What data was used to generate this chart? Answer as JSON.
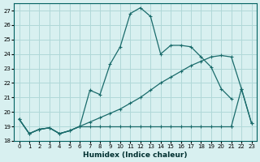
{
  "xlabel": "Humidex (Indice chaleur)",
  "bg_color": "#d8f0f0",
  "grid_color": "#b0d8d8",
  "line_color": "#1a6b6b",
  "xlim": [
    -0.5,
    23.5
  ],
  "ylim": [
    18,
    27.5
  ],
  "xticks": [
    0,
    1,
    2,
    3,
    4,
    5,
    6,
    7,
    8,
    9,
    10,
    11,
    12,
    13,
    14,
    15,
    16,
    17,
    18,
    19,
    20,
    21,
    22,
    23
  ],
  "yticks": [
    18,
    19,
    20,
    21,
    22,
    23,
    24,
    25,
    26,
    27
  ],
  "series": [
    {
      "x": [
        0,
        1,
        2,
        3,
        4,
        5,
        6,
        7,
        8,
        9,
        10,
        11,
        12,
        13,
        14,
        15,
        16,
        17,
        18,
        19,
        20,
        21
      ],
      "y": [
        19.5,
        18.5,
        18.8,
        18.9,
        18.5,
        18.7,
        19.0,
        21.5,
        21.2,
        23.3,
        24.5,
        26.8,
        27.2,
        26.6,
        24.0,
        24.6,
        24.6,
        24.5,
        23.8,
        23.1,
        21.6,
        20.9
      ]
    },
    {
      "x": [
        0,
        1,
        2,
        3,
        4,
        5,
        6,
        7,
        8,
        9,
        10,
        11,
        12,
        13,
        14,
        15,
        16,
        17,
        18,
        19,
        20,
        21,
        22,
        23
      ],
      "y": [
        19.5,
        18.5,
        18.8,
        18.9,
        18.5,
        18.7,
        19.0,
        19.0,
        19.0,
        19.0,
        19.0,
        19.0,
        19.0,
        19.0,
        19.0,
        19.0,
        19.0,
        19.0,
        19.0,
        19.0,
        19.0,
        19.0,
        21.6,
        19.2
      ]
    },
    {
      "x": [
        0,
        1,
        2,
        3,
        4,
        5,
        6,
        7,
        8,
        9,
        10,
        11,
        12,
        13,
        14,
        15,
        16,
        17,
        18,
        19,
        20,
        21,
        22,
        23
      ],
      "y": [
        19.5,
        18.5,
        18.8,
        18.9,
        18.5,
        18.7,
        19.0,
        19.3,
        19.6,
        19.9,
        20.2,
        20.6,
        21.0,
        21.5,
        22.0,
        22.4,
        22.8,
        23.2,
        23.5,
        23.8,
        23.9,
        23.8,
        21.6,
        19.2
      ]
    }
  ]
}
